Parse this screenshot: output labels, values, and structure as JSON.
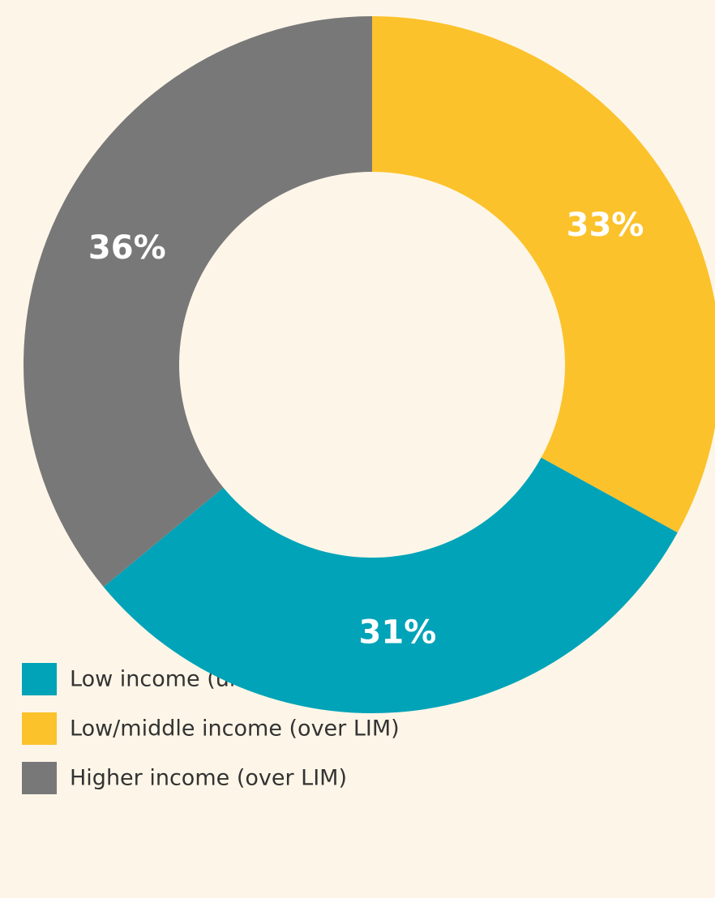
{
  "chart_data": {
    "type": "donut",
    "categories": [
      "Low/middle income (over LIM)",
      "Low income (under LIM)",
      "Higher income (over LIM)"
    ],
    "values": [
      33,
      31,
      36
    ],
    "value_labels": [
      "33%",
      "31%",
      "36%"
    ],
    "colors": [
      "#fcc22b",
      "#00a3b8",
      "#797879"
    ]
  }
}
